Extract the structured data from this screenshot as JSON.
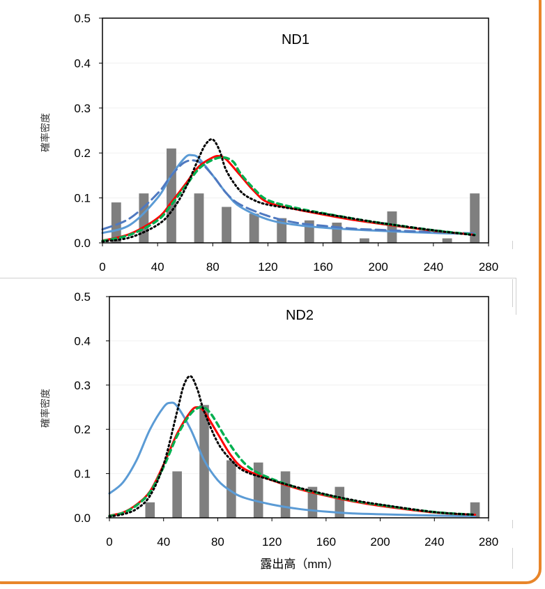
{
  "colors": {
    "bar": "#7f7f7f",
    "solid_blue": "#5b9bd5",
    "dashed_blue": "#4f79c0",
    "red": "#ff0000",
    "green": "#00b050",
    "dotted_black": "#000000",
    "frame": "#E8852A"
  },
  "chart_data": [
    {
      "type": "bar",
      "title": "ND1",
      "xlabel": "",
      "ylabel": "確率密度",
      "xlim": [
        0,
        280
      ],
      "ylim": [
        0,
        0.5
      ],
      "xticks": [
        0,
        40,
        80,
        120,
        160,
        200,
        240,
        280
      ],
      "yticks": [
        "0.0",
        "0.1",
        "0.2",
        "0.3",
        "0.4",
        "0.5"
      ],
      "bars": {
        "x": [
          10,
          30,
          50,
          70,
          90,
          110,
          130,
          150,
          170,
          190,
          210,
          230,
          250,
          270
        ],
        "values": [
          0.09,
          0.11,
          0.21,
          0.11,
          0.08,
          0.065,
          0.055,
          0.05,
          0.045,
          0.01,
          0.07,
          0.0,
          0.01,
          0.11
        ]
      },
      "curves": [
        {
          "style": "solid_blue",
          "x": [
            0,
            20,
            40,
            50,
            60,
            65,
            70,
            80,
            90,
            100,
            120,
            140,
            160,
            180,
            200,
            240,
            270
          ],
          "y": [
            0.022,
            0.04,
            0.1,
            0.15,
            0.19,
            0.195,
            0.188,
            0.15,
            0.11,
            0.08,
            0.052,
            0.04,
            0.034,
            0.03,
            0.027,
            0.022,
            0.02
          ]
        },
        {
          "style": "dashed_blue",
          "x": [
            0,
            20,
            40,
            50,
            60,
            70,
            80,
            90,
            100,
            120,
            140,
            160,
            180,
            200,
            240,
            270
          ],
          "y": [
            0.03,
            0.055,
            0.11,
            0.15,
            0.18,
            0.18,
            0.15,
            0.11,
            0.085,
            0.06,
            0.045,
            0.038,
            0.032,
            0.029,
            0.024,
            0.021
          ]
        },
        {
          "style": "red",
          "x": [
            0,
            20,
            40,
            50,
            60,
            70,
            80,
            85,
            90,
            100,
            110,
            120,
            140,
            160,
            180,
            200,
            240,
            270
          ],
          "y": [
            0.005,
            0.02,
            0.055,
            0.09,
            0.13,
            0.17,
            0.19,
            0.193,
            0.185,
            0.15,
            0.115,
            0.09,
            0.075,
            0.063,
            0.052,
            0.043,
            0.027,
            0.018
          ]
        },
        {
          "style": "green",
          "x": [
            0,
            20,
            40,
            50,
            60,
            70,
            80,
            88,
            95,
            100,
            110,
            120,
            140,
            160,
            180,
            200,
            240,
            270
          ],
          "y": [
            0.004,
            0.018,
            0.05,
            0.085,
            0.125,
            0.165,
            0.185,
            0.19,
            0.18,
            0.155,
            0.12,
            0.095,
            0.078,
            0.066,
            0.055,
            0.045,
            0.028,
            0.018
          ]
        },
        {
          "style": "dotted_black",
          "x": [
            0,
            20,
            40,
            50,
            60,
            70,
            75,
            80,
            85,
            90,
            100,
            110,
            120,
            140,
            160,
            180,
            200,
            240,
            270
          ],
          "y": [
            0.003,
            0.012,
            0.04,
            0.07,
            0.12,
            0.19,
            0.22,
            0.23,
            0.205,
            0.16,
            0.115,
            0.095,
            0.085,
            0.075,
            0.065,
            0.055,
            0.045,
            0.028,
            0.017
          ]
        }
      ]
    },
    {
      "type": "bar",
      "title": "ND2",
      "xlabel": "露出高（mm）",
      "ylabel": "確率密度",
      "xlim": [
        0,
        280
      ],
      "ylim": [
        0,
        0.5
      ],
      "xticks": [
        0,
        40,
        80,
        120,
        160,
        200,
        240,
        280
      ],
      "yticks": [
        "0.0",
        "0.1",
        "0.2",
        "0.3",
        "0.4",
        "0.5"
      ],
      "bars": {
        "x": [
          30,
          50,
          70,
          90,
          110,
          130,
          150,
          170,
          190,
          210,
          230,
          250,
          270
        ],
        "values": [
          0.035,
          0.105,
          0.255,
          0.13,
          0.125,
          0.105,
          0.07,
          0.07,
          0.0,
          0.0,
          0.0,
          0.0,
          0.035
        ]
      },
      "curves": [
        {
          "style": "solid_blue",
          "x": [
            0,
            10,
            20,
            30,
            40,
            45,
            50,
            60,
            70,
            80,
            90,
            100,
            120,
            140,
            160,
            180,
            200,
            240,
            270
          ],
          "y": [
            0.055,
            0.08,
            0.13,
            0.2,
            0.25,
            0.26,
            0.252,
            0.2,
            0.13,
            0.085,
            0.06,
            0.045,
            0.03,
            0.02,
            0.014,
            0.01,
            0.008,
            0.005,
            0.004
          ]
        },
        {
          "style": "red",
          "x": [
            0,
            10,
            20,
            30,
            40,
            50,
            60,
            65,
            70,
            80,
            90,
            100,
            120,
            140,
            160,
            180,
            200,
            240,
            270
          ],
          "y": [
            0.005,
            0.012,
            0.03,
            0.06,
            0.12,
            0.19,
            0.24,
            0.25,
            0.24,
            0.19,
            0.14,
            0.11,
            0.085,
            0.065,
            0.05,
            0.037,
            0.027,
            0.012,
            0.007
          ]
        },
        {
          "style": "green",
          "x": [
            0,
            10,
            20,
            30,
            40,
            50,
            60,
            68,
            75,
            85,
            95,
            105,
            120,
            140,
            160,
            180,
            200,
            240,
            270
          ],
          "y": [
            0.004,
            0.011,
            0.028,
            0.058,
            0.115,
            0.185,
            0.235,
            0.25,
            0.235,
            0.185,
            0.14,
            0.11,
            0.088,
            0.067,
            0.052,
            0.039,
            0.029,
            0.013,
            0.007
          ]
        },
        {
          "style": "dotted_black",
          "x": [
            0,
            10,
            20,
            30,
            40,
            50,
            55,
            60,
            65,
            70,
            80,
            90,
            100,
            120,
            140,
            160,
            180,
            200,
            240,
            270
          ],
          "y": [
            0.003,
            0.008,
            0.02,
            0.05,
            0.12,
            0.24,
            0.3,
            0.32,
            0.29,
            0.24,
            0.17,
            0.13,
            0.105,
            0.085,
            0.068,
            0.053,
            0.04,
            0.03,
            0.013,
            0.007
          ]
        }
      ]
    }
  ]
}
